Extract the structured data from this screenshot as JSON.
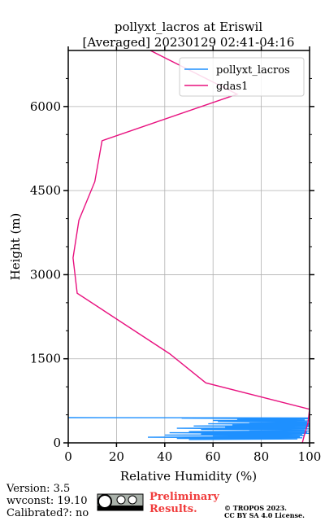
{
  "chart_data": {
    "type": "line",
    "title": "pollyxt_lacros at Eriswil",
    "subtitle": "[Averaged] 20230129 02:41-04:16",
    "x_label": "Relative Humidity (%)",
    "y_label": "Height (m)",
    "xlim": [
      0,
      100
    ],
    "xticks": [
      0,
      20,
      40,
      60,
      80,
      100
    ],
    "ylim": [
      0,
      7000
    ],
    "yticks": [
      0,
      1500,
      3000,
      4500,
      6000
    ],
    "y_minor_ticks": [
      500,
      1000,
      2000,
      2500,
      3500,
      4000,
      5000,
      5500,
      6500
    ],
    "grid": true,
    "legend": "upper right",
    "series": [
      {
        "name": "pollyxt_lacros",
        "color": "#1e90ff",
        "x": [
          0,
          100,
          47,
          100,
          70,
          98,
          60,
          100,
          62,
          99,
          75,
          100,
          58,
          100,
          68,
          100,
          52,
          100,
          65,
          99,
          45,
          100,
          55,
          98,
          75,
          100,
          50,
          99,
          42,
          100,
          55,
          97,
          40,
          98,
          60,
          96,
          33,
          97,
          45,
          95,
          50
        ],
        "y": [
          450,
          445,
          440,
          430,
          420,
          410,
          400,
          390,
          380,
          370,
          360,
          350,
          340,
          330,
          320,
          310,
          300,
          290,
          280,
          270,
          260,
          250,
          240,
          230,
          220,
          210,
          200,
          190,
          180,
          170,
          160,
          150,
          140,
          130,
          120,
          110,
          100,
          90,
          80,
          70,
          60
        ]
      },
      {
        "name": "gdas1",
        "color": "#e8117f",
        "x": [
          34,
          70,
          14,
          11,
          4.4,
          2,
          3.7,
          42,
          57,
          100,
          99.3,
          97.6,
          97
        ],
        "y": [
          7000,
          6220,
          5390,
          4660,
          3970,
          3300,
          2670,
          1590,
          1070,
          600,
          350,
          100,
          0
        ]
      }
    ]
  },
  "footer": {
    "version": "Version: 3.5",
    "wvconst": "wvconst:  19.10",
    "calibrated": "Calibrated?: no",
    "preliminary": [
      "Preliminary",
      "Results."
    ],
    "copyright": "© TROPOS 2023.",
    "license": "CC BY SA 4.0 License."
  }
}
